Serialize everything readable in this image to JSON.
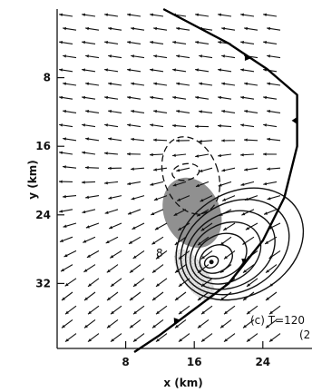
{
  "chart_data": {
    "type": "vector-field",
    "xlabel": "x (km)",
    "ylabel": "y (km)",
    "x_ticks": [
      8,
      16,
      24
    ],
    "y_ticks": [
      8,
      16,
      24,
      32
    ],
    "x_range": [
      0,
      29
    ],
    "y_range": [
      0,
      40
    ],
    "y_axis_inverted": true,
    "grid": false,
    "panel_label": "(c) T=120",
    "panel_label_fragment": "(2",
    "contour_label": "8",
    "front_line": [
      [
        12.4,
        0
      ],
      [
        20,
        4
      ],
      [
        24.5,
        7
      ],
      [
        28,
        10
      ],
      [
        28,
        16
      ],
      [
        26.5,
        22
      ],
      [
        24,
        27
      ],
      [
        20,
        32
      ],
      [
        16,
        35
      ],
      [
        12,
        38
      ],
      [
        9,
        40
      ]
    ],
    "shaded_regions": [
      {
        "shade": "light",
        "center": [
          19.5,
          25
        ],
        "extent": [
          14.5,
          27.5,
          17.5,
          34.5
        ]
      },
      {
        "shade": "dark",
        "center": [
          15.5,
          23
        ],
        "extent": [
          12.5,
          19.5,
          19,
          28
        ]
      }
    ],
    "contours": {
      "style": "solid",
      "center": [
        18,
        29.5
      ],
      "count": 7
    },
    "dashed_contours": {
      "style": "dashed",
      "center": [
        16,
        21
      ],
      "count": 2
    },
    "wind_field": "westward flow; arrows tilt toward increasing y in the lower half"
  }
}
